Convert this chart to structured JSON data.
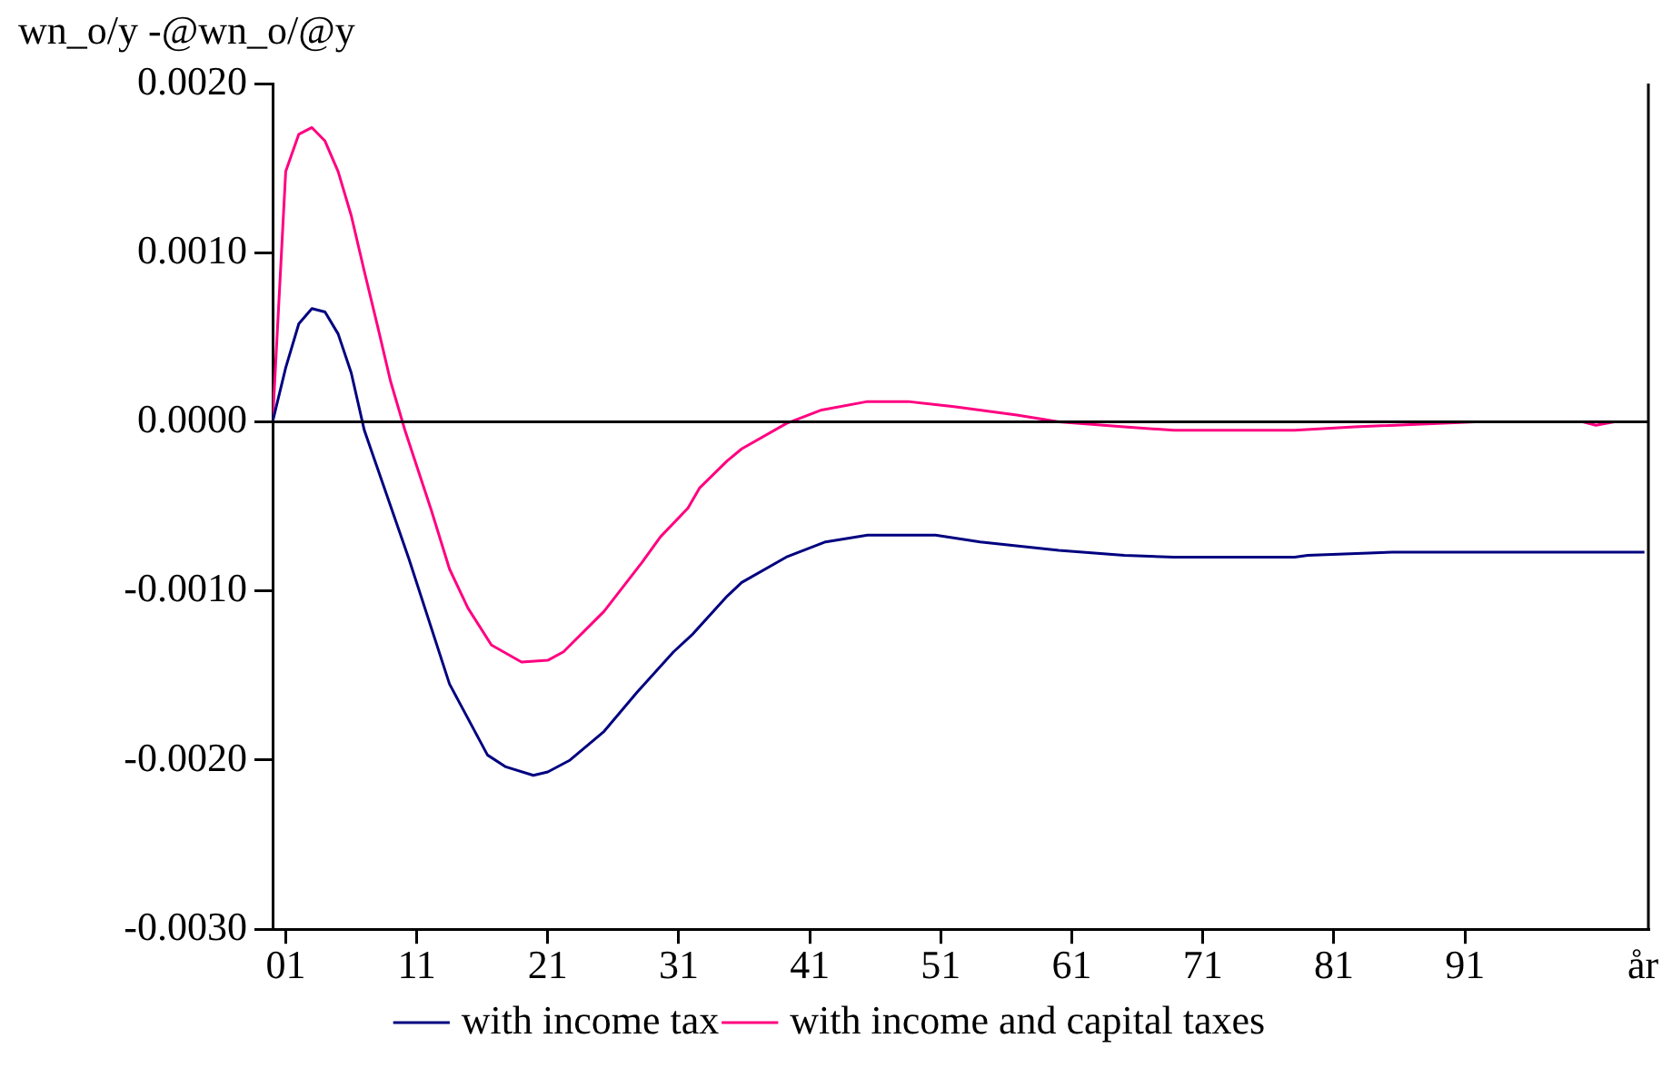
{
  "chart_data": {
    "type": "line",
    "ylabel": "wn_o/y -@wn_o/@y",
    "xlabel": "år",
    "xlim": [
      0,
      105
    ],
    "xticks": [
      {
        "value": 1,
        "label": "01"
      },
      {
        "value": 11,
        "label": "11"
      },
      {
        "value": 21,
        "label": "21"
      },
      {
        "value": 31,
        "label": "31"
      },
      {
        "value": 41,
        "label": "41"
      },
      {
        "value": 51,
        "label": "51"
      },
      {
        "value": 61,
        "label": "61"
      },
      {
        "value": 71,
        "label": "71"
      },
      {
        "value": 81,
        "label": "81"
      },
      {
        "value": 91,
        "label": "91"
      }
    ],
    "ylim": [
      -0.003,
      0.002
    ],
    "yticks": [
      {
        "value": -0.003,
        "label": "-0.0030"
      },
      {
        "value": -0.002,
        "label": "-0.0020"
      },
      {
        "value": -0.001,
        "label": "-0.0010"
      },
      {
        "value": 0,
        "label": "0.0000"
      },
      {
        "value": 0.001,
        "label": "0.0010"
      },
      {
        "value": 0.002,
        "label": "0.0020"
      }
    ],
    "grid": false,
    "legend": "bottom",
    "marker": "none",
    "line_style": "solid",
    "ref_lines": [
      {
        "axis": "y",
        "value": 0,
        "color": "#000000"
      }
    ],
    "series": [
      {
        "name": "with income tax",
        "color": "#000080",
        "x": [
          0,
          1,
          2,
          3,
          4,
          5,
          6,
          7,
          10.4,
          13.5,
          16.4,
          17.8,
          19.9,
          21,
          22.7,
          25.3,
          27.8,
          30.6,
          32,
          34.7,
          35.8,
          39.2,
          42.2,
          45.4,
          50.6,
          54,
          60,
          65,
          68.8,
          78,
          79,
          85.5,
          104.7
        ],
        "values": [
          0,
          0.00032,
          0.00058,
          0.00067,
          0.00065,
          0.00052,
          0.00029,
          -5e-05,
          -0.00081,
          -0.00155,
          -0.00197,
          -0.00204,
          -0.00209,
          -0.00207,
          -0.002,
          -0.00183,
          -0.0016,
          -0.00136,
          -0.00126,
          -0.00103,
          -0.00095,
          -0.0008,
          -0.00071,
          -0.00067,
          -0.00067,
          -0.00071,
          -0.00076,
          -0.00079,
          -0.0008,
          -0.0008,
          -0.00079,
          -0.00077,
          -0.00077
        ]
      },
      {
        "name": "with income and capital taxes",
        "color": "#ff0080",
        "x": [
          0,
          1,
          2,
          3,
          4,
          5,
          6,
          7,
          8,
          9,
          10.1,
          12.1,
          13.5,
          14.9,
          16.7,
          19,
          21,
          22.2,
          25.3,
          26.4,
          28.2,
          29.6,
          31.7,
          32.6,
          34.7,
          35.8,
          39.2,
          41.9,
          45.4,
          48.5,
          52,
          56.8,
          60,
          65,
          68.8,
          78,
          82.6,
          91.8,
          100,
          101,
          102.4,
          104.7
        ],
        "values": [
          0,
          0.00148,
          0.0017,
          0.00174,
          0.00166,
          0.00148,
          0.00122,
          0.00089,
          0.00057,
          0.00024,
          -5e-05,
          -0.00052,
          -0.00087,
          -0.0011,
          -0.00132,
          -0.00142,
          -0.00141,
          -0.00136,
          -0.00112,
          -0.00101,
          -0.00083,
          -0.00068,
          -0.00051,
          -0.00039,
          -0.00023,
          -0.00016,
          -1e-05,
          7e-05,
          0.00012,
          0.00012,
          9e-05,
          4e-05,
          0,
          -3e-05,
          -5e-05,
          -5e-05,
          -3e-05,
          0,
          0,
          -2e-05,
          0,
          0
        ]
      }
    ]
  }
}
